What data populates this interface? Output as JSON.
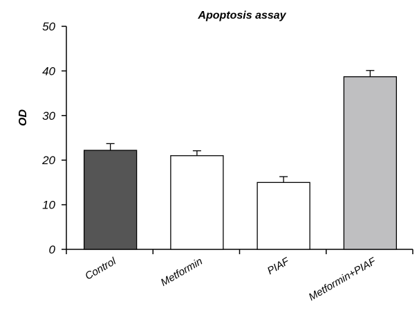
{
  "chart_data": {
    "type": "bar",
    "title": "Apoptosis assay",
    "xlabel": "",
    "ylabel": "OD",
    "ylim": [
      0,
      50
    ],
    "yticks": [
      "0",
      "10",
      "20",
      "30",
      "40",
      "50"
    ],
    "grid": false,
    "categories": [
      "Control",
      "Metformin",
      "PIAF",
      "Metformin+PIAF"
    ],
    "values": [
      22.2,
      21.0,
      15.0,
      38.7
    ],
    "errors": [
      1.5,
      1.1,
      1.3,
      1.4
    ],
    "colors": [
      "#555555",
      "#ffffff",
      "#ffffff",
      "#bfbfc1"
    ]
  }
}
